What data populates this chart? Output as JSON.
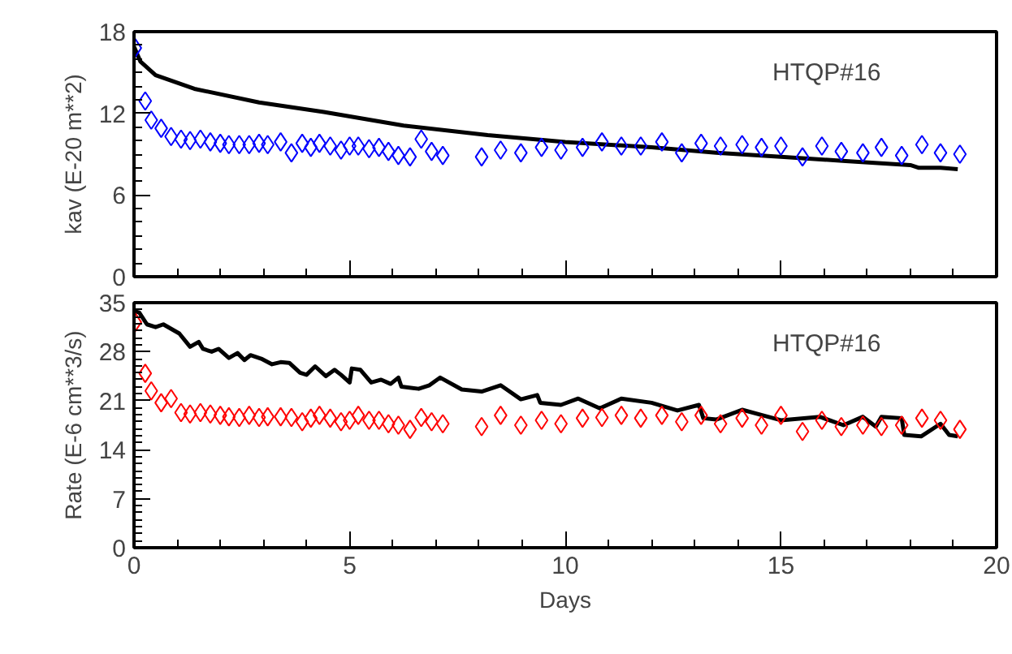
{
  "chart_data": [
    {
      "type": "scatter",
      "ylabel": "kav (E-20 m**2)",
      "annotations": [
        "HTQP#16"
      ],
      "xlim": [
        0,
        20
      ],
      "xticks": [
        0,
        5,
        10,
        15,
        20
      ],
      "ylim": [
        0,
        18
      ],
      "yticks": [
        0,
        6,
        12,
        18
      ],
      "tick_labels": "y",
      "grid": false,
      "series": [
        {
          "marker": "diamond",
          "color": "#0000ff",
          "x": [
            0.03,
            0.26,
            0.4,
            0.63,
            0.86,
            1.09,
            1.3,
            1.54,
            1.77,
            2.0,
            2.2,
            2.44,
            2.67,
            2.9,
            3.1,
            3.4,
            3.65,
            3.9,
            4.1,
            4.3,
            4.55,
            4.8,
            5.0,
            5.2,
            5.45,
            5.68,
            5.9,
            6.13,
            6.4,
            6.66,
            6.9,
            7.16,
            8.06,
            8.5,
            8.97,
            9.45,
            9.9,
            10.4,
            10.85,
            11.3,
            11.75,
            12.24,
            12.7,
            13.15,
            13.6,
            14.1,
            14.55,
            15.0,
            15.5,
            15.95,
            16.4,
            16.9,
            17.33,
            17.8,
            18.27,
            18.7,
            19.15
          ],
          "values": [
            16.8,
            12.9,
            11.5,
            10.9,
            10.3,
            10.1,
            10.0,
            10.1,
            9.9,
            9.8,
            9.7,
            9.7,
            9.7,
            9.8,
            9.7,
            9.9,
            9.1,
            9.8,
            9.5,
            9.8,
            9.6,
            9.3,
            9.6,
            9.6,
            9.4,
            9.5,
            9.2,
            8.9,
            8.8,
            10.1,
            9.2,
            8.9,
            8.8,
            9.3,
            9.1,
            9.5,
            9.3,
            9.5,
            9.9,
            9.6,
            9.6,
            9.9,
            9.1,
            9.8,
            9.6,
            9.7,
            9.5,
            9.6,
            8.8,
            9.6,
            9.2,
            9.1,
            9.5,
            8.9,
            9.7,
            9.1,
            9.0
          ]
        },
        {
          "type": "line",
          "line_style": "solid",
          "marker": "none",
          "color": "#000000",
          "x": [
            0,
            0.15,
            0.5,
            1.4,
            2.9,
            4.4,
            6.25,
            8.2,
            10,
            12,
            13.5,
            15,
            16.5,
            18,
            18.2,
            18.7,
            19.1
          ],
          "values": [
            16.9,
            15.8,
            14.8,
            13.8,
            12.8,
            12.1,
            11.1,
            10.4,
            9.9,
            9.5,
            9.1,
            8.8,
            8.5,
            8.2,
            8.0,
            8.0,
            7.9
          ]
        }
      ]
    },
    {
      "type": "scatter",
      "xlabel": "Days",
      "ylabel": "Rate (E-6 cm**3/s)",
      "annotations": [
        "HTQP#16"
      ],
      "xlim": [
        0,
        20
      ],
      "xticks": [
        0,
        5,
        10,
        15,
        20
      ],
      "ylim": [
        0,
        35
      ],
      "yticks": [
        0,
        7,
        14,
        21,
        28,
        35
      ],
      "grid": false,
      "series": [
        {
          "marker": "diamond",
          "color": "#ff0000",
          "x": [
            0.03,
            0.26,
            0.4,
            0.63,
            0.86,
            1.09,
            1.3,
            1.54,
            1.77,
            2.0,
            2.2,
            2.44,
            2.67,
            2.9,
            3.1,
            3.4,
            3.65,
            3.9,
            4.1,
            4.3,
            4.55,
            4.8,
            5.0,
            5.2,
            5.45,
            5.68,
            5.9,
            6.13,
            6.4,
            6.66,
            6.9,
            7.16,
            8.06,
            8.5,
            8.97,
            9.45,
            9.9,
            10.4,
            10.85,
            11.3,
            11.75,
            12.24,
            12.7,
            13.15,
            13.6,
            14.1,
            14.55,
            15.0,
            15.5,
            15.95,
            16.4,
            16.9,
            17.33,
            17.8,
            18.27,
            18.7,
            19.15
          ],
          "values": [
            32.2,
            24.9,
            22.4,
            20.7,
            21.3,
            19.3,
            19.1,
            19.3,
            19.1,
            18.9,
            18.7,
            18.6,
            18.9,
            18.6,
            18.7,
            18.7,
            18.6,
            18.0,
            18.5,
            18.9,
            18.5,
            18.0,
            18.2,
            18.9,
            18.2,
            18.2,
            17.7,
            17.5,
            16.9,
            18.6,
            18.0,
            17.7,
            17.3,
            18.9,
            17.5,
            18.2,
            17.7,
            18.5,
            18.6,
            18.9,
            18.5,
            18.9,
            18.0,
            18.9,
            17.7,
            18.5,
            17.5,
            18.9,
            16.6,
            18.2,
            17.3,
            17.5,
            17.3,
            17.5,
            18.5,
            18.2,
            16.9
          ]
        },
        {
          "type": "line",
          "line_style": "solid",
          "marker": "none",
          "color": "#000000",
          "x": [
            0,
            0.12,
            0.3,
            0.5,
            0.68,
            1.05,
            1.3,
            1.5,
            1.6,
            1.8,
            1.96,
            2.2,
            2.4,
            2.56,
            2.7,
            2.95,
            3.2,
            3.4,
            3.6,
            3.85,
            4.0,
            4.2,
            4.45,
            4.65,
            4.8,
            5.0,
            5.05,
            5.25,
            5.5,
            5.73,
            5.95,
            6.13,
            6.2,
            6.6,
            6.85,
            7.1,
            7.6,
            8.06,
            8.5,
            8.97,
            9.35,
            9.42,
            9.9,
            10.3,
            10.8,
            11.3,
            12,
            12.6,
            13.1,
            13.2,
            13.5,
            14.1,
            15,
            15.9,
            16.45,
            16.9,
            17.2,
            17.33,
            17.8,
            17.86,
            18.25,
            18.7,
            18.9,
            19.1
          ],
          "values": [
            33.8,
            33.6,
            31.9,
            31.5,
            31.9,
            30.6,
            28.7,
            29.4,
            28.4,
            28.0,
            28.4,
            27.1,
            27.8,
            26.8,
            27.5,
            27.0,
            26.2,
            26.5,
            26.4,
            25.0,
            24.7,
            25.9,
            24.5,
            25.4,
            24.7,
            23.6,
            25.6,
            25.4,
            23.6,
            24.0,
            23.4,
            24.3,
            23.0,
            22.7,
            23.2,
            24.3,
            22.6,
            22.3,
            23.2,
            21.2,
            21.8,
            20.7,
            20.4,
            21.3,
            19.9,
            21.3,
            20.7,
            19.6,
            20.4,
            18.5,
            18.3,
            19.7,
            18.2,
            18.7,
            17.5,
            18.7,
            17.3,
            18.7,
            18.5,
            16.1,
            15.9,
            17.7,
            16.1,
            15.9
          ]
        }
      ]
    }
  ]
}
